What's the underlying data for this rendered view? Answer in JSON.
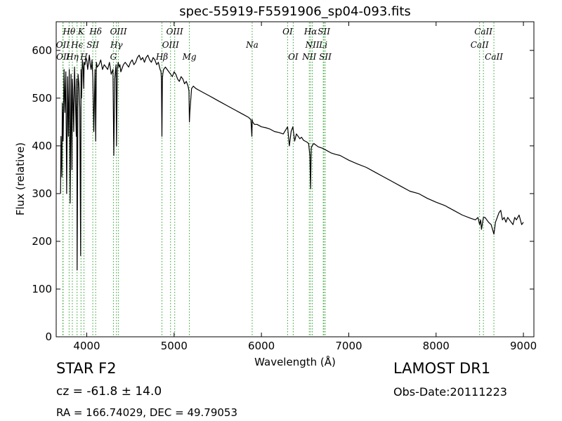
{
  "chart_data": {
    "type": "line",
    "title": "spec-55919-F5591906_sp04-093.fits",
    "xlabel": "Wavelength (Å)",
    "ylabel": "Flux (relative)",
    "xlim": [
      3650,
      9120
    ],
    "ylim": [
      0,
      660
    ],
    "xticks": [
      4000,
      5000,
      6000,
      7000,
      8000,
      9000
    ],
    "yticks": [
      0,
      100,
      200,
      300,
      400,
      500,
      600
    ],
    "grid": false,
    "line_color": "#000000",
    "marker_color": "#2ca02c",
    "series": [
      {
        "x": [
          3700,
          3705,
          3715,
          3720,
          3730,
          3740,
          3750,
          3760,
          3770,
          3780,
          3790,
          3800,
          3810,
          3820,
          3830,
          3835,
          3840,
          3850,
          3860,
          3870,
          3880,
          3885,
          3890,
          3900,
          3910,
          3920,
          3930,
          3935,
          3940,
          3950,
          3960,
          3965,
          3970,
          3980,
          3990,
          4000,
          4010,
          4020,
          4030,
          4040,
          4050,
          4060,
          4070,
          4080,
          4095,
          4102,
          4110,
          4120,
          4140,
          4160,
          4180,
          4200,
          4220,
          4240,
          4260,
          4280,
          4300,
          4310,
          4320,
          4330,
          4335,
          4340,
          4350,
          4360,
          4370,
          4380,
          4390,
          4400,
          4420,
          4440,
          4460,
          4480,
          4500,
          4520,
          4540,
          4560,
          4580,
          4600,
          4620,
          4640,
          4660,
          4680,
          4700,
          4720,
          4740,
          4760,
          4780,
          4800,
          4820,
          4840,
          4850,
          4855,
          4861,
          4866,
          4870,
          4880,
          4900,
          4920,
          4940,
          4960,
          4980,
          5000,
          5020,
          5040,
          5060,
          5080,
          5100,
          5120,
          5140,
          5160,
          5170,
          5175,
          5180,
          5200,
          5220,
          5250,
          5300,
          5350,
          5400,
          5450,
          5500,
          5550,
          5600,
          5650,
          5700,
          5750,
          5800,
          5850,
          5880,
          5890,
          5895,
          5900,
          5920,
          5950,
          6000,
          6050,
          6100,
          6150,
          6200,
          6250,
          6300,
          6320,
          6340,
          6360,
          6380,
          6400,
          6420,
          6440,
          6460,
          6480,
          6500,
          6520,
          6540,
          6555,
          6563,
          6570,
          6580,
          6600,
          6650,
          6700,
          6750,
          6800,
          6850,
          6900,
          6950,
          7000,
          7100,
          7200,
          7300,
          7400,
          7500,
          7600,
          7700,
          7800,
          7900,
          8000,
          8100,
          8200,
          8300,
          8400,
          8450,
          8480,
          8498,
          8510,
          8520,
          8542,
          8560,
          8580,
          8600,
          8630,
          8662,
          8680,
          8700,
          8720,
          8740,
          8760,
          8780,
          8800,
          8820,
          8840,
          8860,
          8880,
          8900,
          8920,
          8950,
          8980,
          9000
        ],
        "y": [
          300,
          420,
          335,
          490,
          410,
          560,
          470,
          555,
          300,
          545,
          420,
          560,
          280,
          550,
          350,
          540,
          520,
          430,
          565,
          500,
          420,
          540,
          140,
          550,
          530,
          480,
          170,
          560,
          500,
          580,
          560,
          520,
          575,
          570,
          585,
          580,
          560,
          575,
          590,
          570,
          560,
          580,
          540,
          430,
          560,
          410,
          575,
          565,
          570,
          580,
          560,
          570,
          565,
          560,
          575,
          550,
          560,
          380,
          540,
          560,
          570,
          400,
          560,
          575,
          565,
          570,
          555,
          560,
          570,
          575,
          570,
          565,
          575,
          580,
          570,
          575,
          585,
          590,
          580,
          585,
          575,
          585,
          590,
          580,
          575,
          585,
          580,
          570,
          575,
          560,
          555,
          540,
          420,
          540,
          550,
          560,
          565,
          560,
          555,
          550,
          545,
          555,
          550,
          540,
          535,
          545,
          540,
          530,
          535,
          525,
          515,
          450,
          470,
          520,
          525,
          520,
          515,
          510,
          505,
          500,
          495,
          490,
          485,
          480,
          475,
          470,
          465,
          460,
          455,
          420,
          455,
          450,
          445,
          445,
          440,
          438,
          435,
          430,
          428,
          425,
          440,
          400,
          430,
          440,
          410,
          425,
          420,
          415,
          418,
          412,
          410,
          408,
          405,
          380,
          310,
          395,
          400,
          405,
          398,
          395,
          390,
          385,
          382,
          380,
          375,
          370,
          362,
          355,
          345,
          335,
          325,
          315,
          305,
          300,
          290,
          282,
          275,
          265,
          255,
          248,
          245,
          250,
          235,
          245,
          225,
          250,
          250,
          245,
          240,
          235,
          215,
          240,
          250,
          260,
          265,
          245,
          250,
          240,
          250,
          245,
          240,
          235,
          250,
          245,
          255,
          235,
          240
        ]
      }
    ],
    "lines": [
      {
        "label": "Hθ",
        "wavelength": 3798,
        "row": 1
      },
      {
        "label": "OII",
        "wavelength": 3726,
        "row": 2
      },
      {
        "label": "OII",
        "wavelength": 3729,
        "row": 3
      },
      {
        "label": "Hη",
        "wavelength": 3835,
        "row": 3
      },
      {
        "label": "K",
        "wavelength": 3934,
        "row": 1
      },
      {
        "label": "Hϵ",
        "wavelength": 3889,
        "row": 2
      },
      {
        "label": "H",
        "wavelength": 3968,
        "row": 3
      },
      {
        "label": "SII",
        "wavelength": 4069,
        "row": 2
      },
      {
        "label": "Hδ",
        "wavelength": 4102,
        "row": 1
      },
      {
        "label": "OIII",
        "wavelength": 4363,
        "row": 1
      },
      {
        "label": "Hγ",
        "wavelength": 4340,
        "row": 2
      },
      {
        "label": "G",
        "wavelength": 4305,
        "row": 3
      },
      {
        "label": "OIII",
        "wavelength": 5007,
        "row": 1
      },
      {
        "label": "OIII",
        "wavelength": 4959,
        "row": 2
      },
      {
        "label": "Hβ",
        "wavelength": 4861,
        "row": 3
      },
      {
        "label": "Mg",
        "wavelength": 5175,
        "row": 3
      },
      {
        "label": "Na",
        "wavelength": 5894,
        "row": 2
      },
      {
        "label": "OI",
        "wavelength": 6300,
        "row": 1
      },
      {
        "label": "OI",
        "wavelength": 6364,
        "row": 3
      },
      {
        "label": "Hα",
        "wavelength": 6563,
        "row": 1
      },
      {
        "label": "NII",
        "wavelength": 6583,
        "row": 2
      },
      {
        "label": "NII",
        "wavelength": 6548,
        "row": 3
      },
      {
        "label": "SII",
        "wavelength": 6716,
        "row": 1
      },
      {
        "label": "Li",
        "wavelength": 6708,
        "row": 2
      },
      {
        "label": "SII",
        "wavelength": 6731,
        "row": 3
      },
      {
        "label": "CaII",
        "wavelength": 8542,
        "row": 1
      },
      {
        "label": "CaII",
        "wavelength": 8498,
        "row": 2
      },
      {
        "label": "CaII",
        "wavelength": 8662,
        "row": 3
      }
    ]
  },
  "info": {
    "class": "STAR   F2",
    "survey": "LAMOST DR1",
    "cz": "cz = -61.8 ± 14.0",
    "obs_date": "Obs-Date:20111223",
    "radec": "RA = 166.74029, DEC = 49.79053"
  }
}
